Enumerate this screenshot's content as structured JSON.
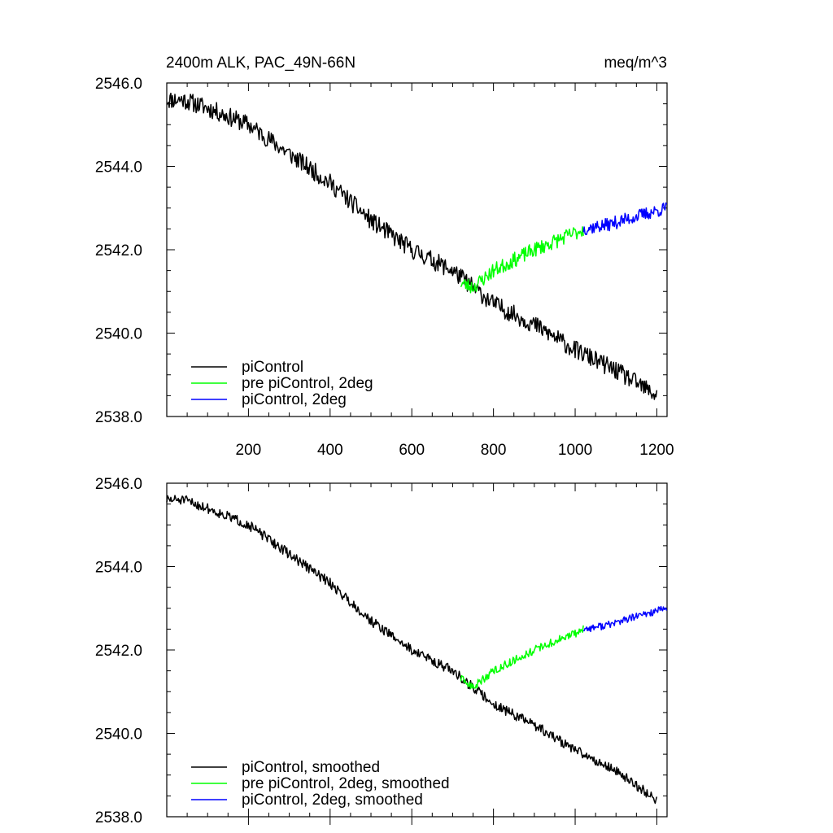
{
  "colors": {
    "black": "#000000",
    "green": "#00ff00",
    "blue": "#0000ff"
  },
  "header": {
    "title": "2400m ALK, PAC_49N-66N",
    "units": "meq/m^3"
  },
  "chart_data": [
    {
      "type": "line",
      "title": "2400m ALK, PAC_49N-66N",
      "units": "meq/m^3",
      "xlim": [
        0,
        1225
      ],
      "ylim": [
        2538.0,
        2546.0
      ],
      "xticks": [
        200,
        400,
        600,
        800,
        1000,
        1200
      ],
      "xtick_labels": [
        "200",
        "400",
        "600",
        "800",
        "1000",
        "1200"
      ],
      "yticks": [
        2538.0,
        2540.0,
        2542.0,
        2544.0,
        2546.0
      ],
      "ytick_labels": [
        "2538.0",
        "2540.0",
        "2542.0",
        "2544.0",
        "2546.0"
      ],
      "legend_position": "bottom-left",
      "series": [
        {
          "name": "piControl",
          "color": "#000000",
          "noise": 0.22,
          "seed": 11,
          "anchors": [
            [
              0,
              2545.6
            ],
            [
              40,
              2545.6
            ],
            [
              100,
              2545.4
            ],
            [
              200,
              2545.0
            ],
            [
              300,
              2544.3
            ],
            [
              400,
              2543.6
            ],
            [
              500,
              2542.7
            ],
            [
              600,
              2542.0
            ],
            [
              700,
              2541.5
            ],
            [
              800,
              2540.7
            ],
            [
              900,
              2540.2
            ],
            [
              1000,
              2539.6
            ],
            [
              1100,
              2539.1
            ],
            [
              1200,
              2538.5
            ]
          ]
        },
        {
          "name": "pre piControl, 2deg",
          "color": "#00ff00",
          "noise": 0.18,
          "seed": 23,
          "anchors": [
            [
              720,
              2541.2
            ],
            [
              750,
              2541.1
            ],
            [
              800,
              2541.5
            ],
            [
              900,
              2542.0
            ],
            [
              1000,
              2542.4
            ],
            [
              1020,
              2542.5
            ]
          ]
        },
        {
          "name": "piControl, 2deg",
          "color": "#0000ff",
          "noise": 0.16,
          "seed": 37,
          "anchors": [
            [
              1020,
              2542.5
            ],
            [
              1080,
              2542.6
            ],
            [
              1150,
              2542.8
            ],
            [
              1225,
              2543.0
            ]
          ]
        }
      ]
    },
    {
      "type": "line",
      "title": "",
      "xlim": [
        0,
        1225
      ],
      "ylim": [
        2538.0,
        2546.0
      ],
      "yticks": [
        2538.0,
        2540.0,
        2542.0,
        2544.0,
        2546.0
      ],
      "ytick_labels": [
        "2538.0",
        "2540.0",
        "2542.0",
        "2544.0",
        "2546.0"
      ],
      "legend_position": "bottom-left",
      "series": [
        {
          "name": "piControl, smoothed",
          "color": "#000000",
          "noise": 0.12,
          "seed": 51,
          "anchors": [
            [
              0,
              2545.6
            ],
            [
              40,
              2545.6
            ],
            [
              100,
              2545.4
            ],
            [
              200,
              2545.0
            ],
            [
              300,
              2544.3
            ],
            [
              400,
              2543.6
            ],
            [
              500,
              2542.7
            ],
            [
              600,
              2542.0
            ],
            [
              700,
              2541.5
            ],
            [
              800,
              2540.7
            ],
            [
              900,
              2540.2
            ],
            [
              1000,
              2539.6
            ],
            [
              1100,
              2539.1
            ],
            [
              1200,
              2538.4
            ]
          ]
        },
        {
          "name": "pre piControl, 2deg, smoothed",
          "color": "#00ff00",
          "noise": 0.1,
          "seed": 63,
          "anchors": [
            [
              720,
              2541.3
            ],
            [
              750,
              2541.1
            ],
            [
              800,
              2541.5
            ],
            [
              900,
              2542.0
            ],
            [
              1000,
              2542.4
            ],
            [
              1020,
              2542.5
            ]
          ]
        },
        {
          "name": "piControl, 2deg, smoothed",
          "color": "#0000ff",
          "noise": 0.09,
          "seed": 77,
          "anchors": [
            [
              1020,
              2542.5
            ],
            [
              1080,
              2542.6
            ],
            [
              1150,
              2542.8
            ],
            [
              1225,
              2543.0
            ]
          ]
        }
      ]
    }
  ]
}
